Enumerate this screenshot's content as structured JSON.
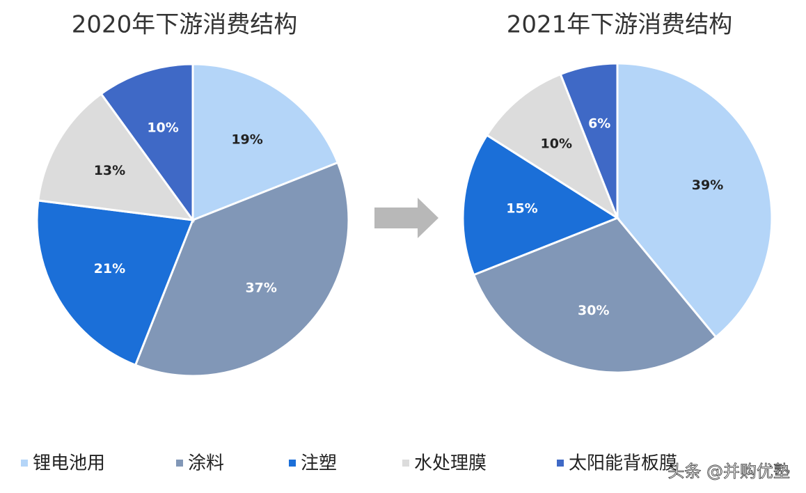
{
  "chart_data": [
    {
      "type": "pie",
      "title": "2020年下游消费结构",
      "categories": [
        "锂电池用",
        "涂料",
        "注塑",
        "水处理膜",
        "太阳能背板膜"
      ],
      "values": [
        19,
        37,
        21,
        13,
        10
      ],
      "value_labels": [
        "19%",
        "37%",
        "21%",
        "13%",
        "10%"
      ],
      "colors": [
        "#b4d5f8",
        "#8197b7",
        "#1b6fd8",
        "#dcdcdc",
        "#3f69c6"
      ]
    },
    {
      "type": "pie",
      "title": "2021年下游消费结构",
      "categories": [
        "锂电池用",
        "涂料",
        "注塑",
        "水处理膜",
        "太阳能背板膜"
      ],
      "values": [
        39,
        30,
        15,
        10,
        6
      ],
      "value_labels": [
        "39%",
        "30%",
        "15%",
        "10%",
        "6%"
      ],
      "colors": [
        "#b4d5f8",
        "#8197b7",
        "#1b6fd8",
        "#dcdcdc",
        "#3f69c6"
      ]
    }
  ],
  "watermark": "头条 @并购优塾"
}
